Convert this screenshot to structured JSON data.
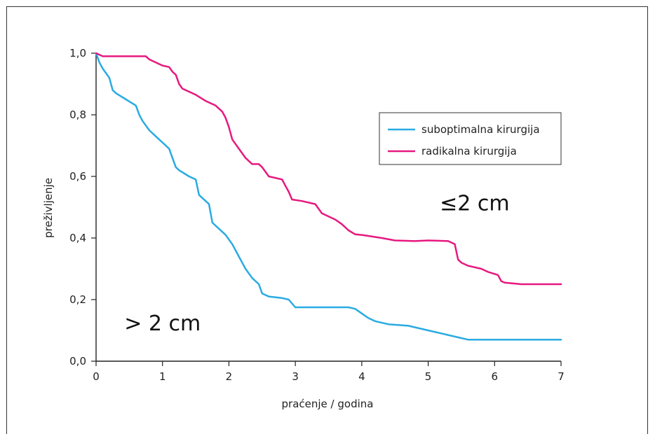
{
  "chart_data": {
    "type": "line",
    "xlabel": "praćenje / godina",
    "ylabel": "preživljenje",
    "xlim": [
      0,
      7
    ],
    "ylim": [
      0,
      1
    ],
    "xticks": [
      0,
      1,
      2,
      3,
      4,
      5,
      6,
      7
    ],
    "xtick_labels": [
      "0",
      "1",
      "2",
      "3",
      "4",
      "5",
      "6",
      "7"
    ],
    "yticks": [
      0,
      0.2,
      0.4,
      0.6,
      0.8,
      1.0
    ],
    "ytick_labels": [
      "0,0",
      "0,2",
      "0,4",
      "0,6",
      "0,8",
      "1,0"
    ],
    "grid": false,
    "legend_position": "top-right",
    "annotations": [
      {
        "text": "≤2 cm",
        "x": 5.7,
        "y": 0.49
      },
      {
        "text": "> 2 cm",
        "x": 1.0,
        "y": 0.1
      }
    ],
    "series": [
      {
        "name": "suboptimalna kirurgija",
        "color": "#29abe2",
        "x": [
          0,
          0.05,
          0.1,
          0.2,
          0.25,
          0.3,
          0.45,
          0.6,
          0.65,
          0.7,
          0.8,
          0.9,
          1.0,
          1.1,
          1.15,
          1.2,
          1.25,
          1.4,
          1.5,
          1.55,
          1.6,
          1.7,
          1.75,
          1.85,
          1.95,
          2.05,
          2.15,
          2.25,
          2.35,
          2.45,
          2.5,
          2.6,
          2.8,
          2.9,
          3.0,
          3.5,
          3.8,
          3.9,
          4.0,
          4.1,
          4.2,
          4.4,
          4.7,
          5.0,
          5.3,
          5.5,
          5.6,
          6.0,
          7.0
        ],
        "y": [
          1.0,
          0.97,
          0.95,
          0.92,
          0.88,
          0.87,
          0.85,
          0.83,
          0.8,
          0.78,
          0.75,
          0.73,
          0.71,
          0.69,
          0.66,
          0.63,
          0.62,
          0.6,
          0.59,
          0.54,
          0.53,
          0.51,
          0.45,
          0.43,
          0.41,
          0.38,
          0.34,
          0.3,
          0.27,
          0.25,
          0.22,
          0.21,
          0.205,
          0.2,
          0.175,
          0.175,
          0.175,
          0.17,
          0.155,
          0.14,
          0.13,
          0.12,
          0.115,
          0.1,
          0.085,
          0.075,
          0.07,
          0.07,
          0.07
        ]
      },
      {
        "name": "radikalna kirurgija",
        "color": "#e6197f",
        "x": [
          0,
          0.1,
          0.3,
          0.6,
          0.75,
          0.8,
          0.9,
          1.0,
          1.1,
          1.15,
          1.2,
          1.25,
          1.3,
          1.5,
          1.65,
          1.8,
          1.9,
          1.95,
          2.0,
          2.05,
          2.15,
          2.25,
          2.35,
          2.45,
          2.5,
          2.6,
          2.8,
          2.85,
          2.9,
          2.95,
          3.1,
          3.3,
          3.4,
          3.6,
          3.7,
          3.8,
          3.9,
          4.0,
          4.3,
          4.5,
          4.8,
          5.0,
          5.3,
          5.4,
          5.45,
          5.5,
          5.6,
          5.8,
          5.9,
          6.05,
          6.1,
          6.15,
          6.4,
          7.0
        ],
        "y": [
          1.0,
          0.99,
          0.99,
          0.99,
          0.99,
          0.98,
          0.97,
          0.96,
          0.955,
          0.94,
          0.93,
          0.9,
          0.885,
          0.865,
          0.845,
          0.83,
          0.81,
          0.79,
          0.76,
          0.72,
          0.69,
          0.66,
          0.64,
          0.64,
          0.63,
          0.6,
          0.59,
          0.57,
          0.55,
          0.525,
          0.52,
          0.51,
          0.48,
          0.46,
          0.445,
          0.425,
          0.412,
          0.41,
          0.4,
          0.392,
          0.39,
          0.392,
          0.39,
          0.38,
          0.33,
          0.32,
          0.31,
          0.3,
          0.29,
          0.28,
          0.26,
          0.255,
          0.25,
          0.25
        ]
      }
    ]
  }
}
